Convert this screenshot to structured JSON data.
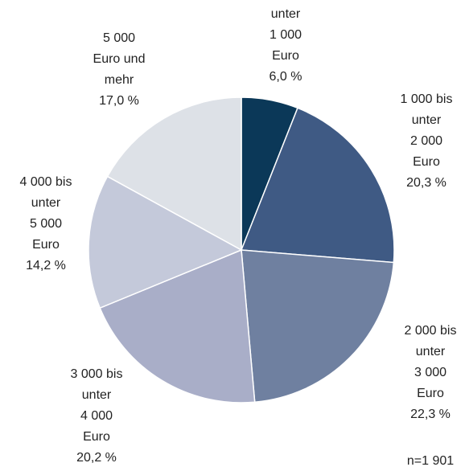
{
  "chart_data": {
    "type": "pie",
    "categories": [
      [
        "unter",
        "1 000",
        "Euro"
      ],
      [
        "1 000 bis",
        "unter",
        "2 000",
        "Euro"
      ],
      [
        "2 000 bis",
        "unter",
        "3 000",
        "Euro"
      ],
      [
        "3 000 bis",
        "unter",
        "4 000",
        "Euro"
      ],
      [
        "4 000 bis",
        "unter",
        "5 000",
        "Euro"
      ],
      [
        "5 000",
        "Euro und",
        "mehr"
      ]
    ],
    "values": [
      6.0,
      20.3,
      22.3,
      20.2,
      14.2,
      17.0
    ],
    "value_labels": [
      "6,0 %",
      "20,3 %",
      "22,3 %",
      "20,2 %",
      "14,2 %",
      "17,0 %"
    ],
    "colors": [
      "#0b3858",
      "#3f5a84",
      "#6f80a0",
      "#a9aec8",
      "#c4c9da",
      "#dde1e7"
    ],
    "annotation": "n=1 901"
  }
}
